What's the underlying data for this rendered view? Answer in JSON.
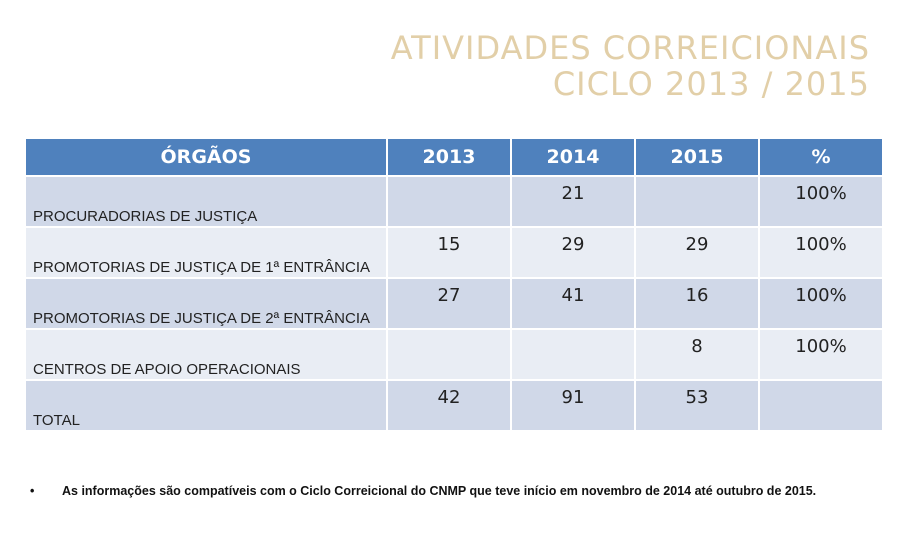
{
  "title": {
    "line1": "ATIVIDADES CORREICIONAIS",
    "line2": "CICLO 2013 / 2015"
  },
  "table": {
    "headers": [
      "ÓRGÃOS",
      "2013",
      "2014",
      "2015",
      "%"
    ],
    "rows": [
      [
        "PROCURADORIAS DE JUSTIÇA",
        "",
        "21",
        "",
        "100%"
      ],
      [
        "PROMOTORIAS DE JUSTIÇA DE 1ª ENTRÂNCIA",
        "15",
        "29",
        "29",
        "100%"
      ],
      [
        "PROMOTORIAS DE JUSTIÇA DE 2ª ENTRÂNCIA",
        "27",
        "41",
        "16",
        "100%"
      ],
      [
        "CENTROS DE APOIO OPERACIONAIS",
        "",
        "",
        "8",
        "100%"
      ],
      [
        "TOTAL",
        "42",
        "91",
        "53",
        ""
      ]
    ]
  },
  "note": {
    "bullet": "•",
    "text": "As informações são compatíveis com o  Ciclo Correicional do CNMP  que teve início em novembro de 2014 até outubro de 2015."
  },
  "colors": {
    "header_bg": "#4f81bd",
    "row_odd": "#d0d8e8",
    "row_even": "#e9edf4",
    "title": "#e2cfa8"
  }
}
